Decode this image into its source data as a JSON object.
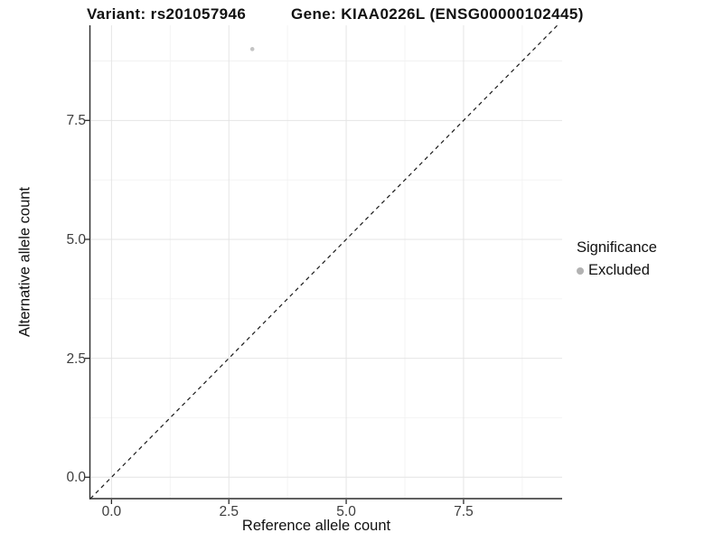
{
  "chart_data": {
    "type": "scatter",
    "titles": {
      "left": "Variant: rs201057946",
      "right": "Gene: KIAA0226L (ENSG00000102445)"
    },
    "xlabel": "Reference allele count",
    "ylabel": "Alternative allele count",
    "xlim": [
      -0.45,
      9.6
    ],
    "ylim": [
      -0.45,
      9.5
    ],
    "x_ticks": {
      "values": [
        0,
        2.5,
        5.0,
        7.5
      ],
      "labels": [
        "0.0",
        "2.5",
        "5.0",
        "7.5"
      ]
    },
    "y_ticks": {
      "values": [
        0,
        2.5,
        5.0,
        7.5
      ],
      "labels": [
        "0.0",
        "2.5",
        "5.0",
        "7.5"
      ]
    },
    "minor_tick_step": 1.25,
    "grid": {
      "major": true,
      "minor": true,
      "major_color": "#e4e4e4",
      "minor_color": "#f2f2f2"
    },
    "identity_line": {
      "slope": 1,
      "intercept": 0,
      "style": "dashed",
      "color": "#1a1a1a"
    },
    "series": [
      {
        "name": "Excluded",
        "color": "#c4c4c4",
        "points": [
          {
            "x": 3,
            "y": 9
          }
        ]
      }
    ],
    "legend": {
      "title": "Significance",
      "position": "right",
      "items": [
        {
          "label": "Excluded",
          "color": "#b2b2b2"
        }
      ]
    },
    "axis_color": "#2b2b2b",
    "tick_label_color": "#3d3d3d"
  }
}
